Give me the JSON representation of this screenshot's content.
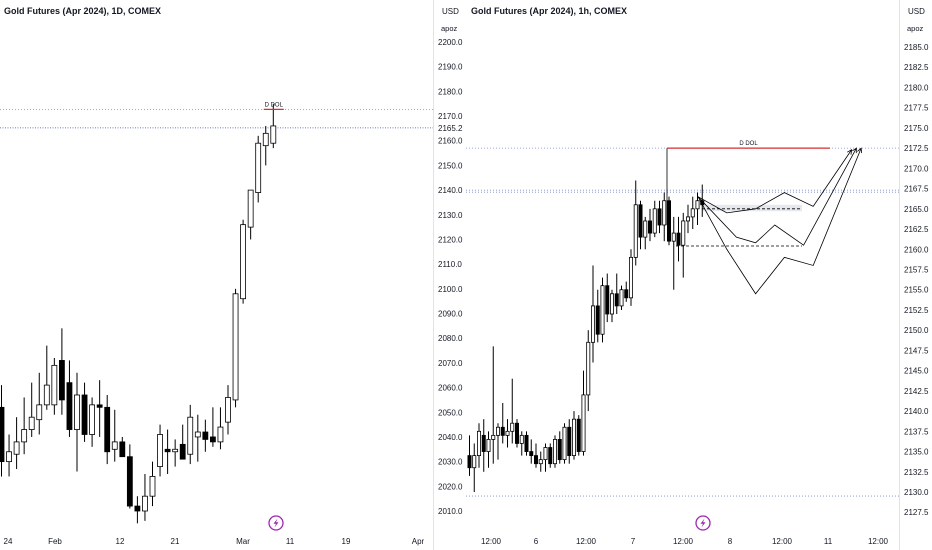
{
  "left_panel": {
    "title": "Gold Futures (Apr 2024), 1D, COMEX",
    "currency": "USD",
    "scale_mode": "apoz",
    "annotation": "D DOL",
    "logo": "tradingview-lightning-icon"
  },
  "right_panel": {
    "title": "Gold Futures (Apr 2024), 1h, COMEX",
    "currency": "USD",
    "scale_mode": "apoz",
    "annotation": "D DOL",
    "logo": "tradingview-lightning-icon"
  },
  "colors": {
    "candle_up_fill": "#ffffff",
    "candle_down_fill": "#000000",
    "candle_outline": "#000000",
    "dol_line": "#d32f2f",
    "dotted_level": "#7b8ec8",
    "logo": "#9c27b0"
  },
  "chart_data": [
    {
      "type": "candlestick",
      "title": "Gold Futures (Apr 2024), 1D, COMEX",
      "y_ticks": [
        2010.0,
        2020.0,
        2030.0,
        2040.0,
        2050.0,
        2060.0,
        2070.0,
        2080.0,
        2090.0,
        2100.0,
        2110.0,
        2120.0,
        2130.0,
        2140.0,
        2150.0,
        2160.0,
        2165.2,
        2170.0,
        2180.0,
        2190.0,
        2200.0
      ],
      "ylim": [
        2005,
        2210
      ],
      "x_tick_labels": [
        "24",
        "Feb",
        "12",
        "21",
        "Mar",
        "11",
        "19",
        "Apr"
      ],
      "candles": [
        {
          "o": 2052,
          "h": 2061,
          "l": 2024,
          "c": 2030
        },
        {
          "o": 2030,
          "h": 2041,
          "l": 2024,
          "c": 2034
        },
        {
          "o": 2033,
          "h": 2048,
          "l": 2027,
          "c": 2038
        },
        {
          "o": 2038,
          "h": 2056,
          "l": 2033,
          "c": 2043
        },
        {
          "o": 2043,
          "h": 2062,
          "l": 2040,
          "c": 2048
        },
        {
          "o": 2047,
          "h": 2066,
          "l": 2041,
          "c": 2053
        },
        {
          "o": 2053,
          "h": 2077,
          "l": 2051,
          "c": 2061
        },
        {
          "o": 2053,
          "h": 2072,
          "l": 2049,
          "c": 2069
        },
        {
          "o": 2071,
          "h": 2084,
          "l": 2049,
          "c": 2055
        },
        {
          "o": 2062,
          "h": 2071,
          "l": 2040,
          "c": 2043
        },
        {
          "o": 2043,
          "h": 2066,
          "l": 2026,
          "c": 2057
        },
        {
          "o": 2057,
          "h": 2062,
          "l": 2038,
          "c": 2041
        },
        {
          "o": 2041,
          "h": 2056,
          "l": 2036,
          "c": 2053
        },
        {
          "o": 2053,
          "h": 2063,
          "l": 2040,
          "c": 2052
        },
        {
          "o": 2052,
          "h": 2057,
          "l": 2029,
          "c": 2034
        },
        {
          "o": 2035,
          "h": 2051,
          "l": 2030,
          "c": 2038
        },
        {
          "o": 2038,
          "h": 2040,
          "l": 2033,
          "c": 2032
        },
        {
          "o": 2032,
          "h": 2037,
          "l": 2011,
          "c": 2012
        },
        {
          "o": 2012,
          "h": 2016,
          "l": 2005,
          "c": 2010
        },
        {
          "o": 2010,
          "h": 2025,
          "l": 2006,
          "c": 2016
        },
        {
          "o": 2016,
          "h": 2030,
          "l": 2012,
          "c": 2024
        },
        {
          "o": 2028,
          "h": 2045,
          "l": 2024,
          "c": 2041
        },
        {
          "o": 2035,
          "h": 2043,
          "l": 2025,
          "c": 2034
        },
        {
          "o": 2034,
          "h": 2039,
          "l": 2028,
          "c": 2035
        },
        {
          "o": 2037,
          "h": 2045,
          "l": 2031,
          "c": 2031
        },
        {
          "o": 2033,
          "h": 2053,
          "l": 2029,
          "c": 2048
        },
        {
          "o": 2040,
          "h": 2049,
          "l": 2030,
          "c": 2042
        },
        {
          "o": 2042,
          "h": 2047,
          "l": 2034,
          "c": 2039
        },
        {
          "o": 2040,
          "h": 2052,
          "l": 2036,
          "c": 2038
        },
        {
          "o": 2038,
          "h": 2052,
          "l": 2035,
          "c": 2044
        },
        {
          "o": 2046,
          "h": 2061,
          "l": 2041,
          "c": 2056
        },
        {
          "o": 2055,
          "h": 2100,
          "l": 2052,
          "c": 2098
        },
        {
          "o": 2096,
          "h": 2128,
          "l": 2094,
          "c": 2126
        },
        {
          "o": 2125,
          "h": 2140,
          "l": 2120,
          "c": 2140
        },
        {
          "o": 2139,
          "h": 2162,
          "l": 2135,
          "c": 2159
        },
        {
          "o": 2158,
          "h": 2166,
          "l": 2150,
          "c": 2163
        },
        {
          "o": 2159,
          "h": 2175,
          "l": 2157,
          "c": 2166
        }
      ],
      "levels": {
        "dol": 2172.7,
        "current": 2165.2
      }
    },
    {
      "type": "candlestick",
      "title": "Gold Futures (Apr 2024), 1h, COMEX",
      "y_ticks": [
        2127.5,
        2130.0,
        2132.5,
        2135.0,
        2137.5,
        2140.0,
        2142.5,
        2145.0,
        2147.5,
        2150.0,
        2152.5,
        2155.0,
        2157.5,
        2160.0,
        2162.5,
        2165.0,
        2167.5,
        2170.0,
        2172.5,
        2175.0,
        2177.5,
        2180.0,
        2182.5,
        2185.0
      ],
      "ylim": [
        2126.0,
        2187.5
      ],
      "x_tick_labels": [
        "12:00",
        "6",
        "12:00",
        "7",
        "12:00",
        "8",
        "12:00",
        "11",
        "12:00"
      ],
      "candles": [
        {
          "o": 2134.5,
          "h": 2137.0,
          "l": 2132.0,
          "c": 2133.0
        },
        {
          "o": 2133.0,
          "h": 2136.0,
          "l": 2130.0,
          "c": 2134.5
        },
        {
          "o": 2134.5,
          "h": 2138.5,
          "l": 2133.0,
          "c": 2137.5
        },
        {
          "o": 2137.0,
          "h": 2139.0,
          "l": 2132.5,
          "c": 2135.0
        },
        {
          "o": 2135.0,
          "h": 2137.5,
          "l": 2133.0,
          "c": 2136.5
        },
        {
          "o": 2136.5,
          "h": 2148.0,
          "l": 2133.5,
          "c": 2137.0
        },
        {
          "o": 2137.0,
          "h": 2138.5,
          "l": 2134.0,
          "c": 2138.0
        },
        {
          "o": 2138.0,
          "h": 2141.0,
          "l": 2136.0,
          "c": 2137.0
        },
        {
          "o": 2137.0,
          "h": 2139.0,
          "l": 2135.5,
          "c": 2137.5
        },
        {
          "o": 2137.5,
          "h": 2144.0,
          "l": 2136.0,
          "c": 2138.5
        },
        {
          "o": 2138.5,
          "h": 2139.0,
          "l": 2135.5,
          "c": 2136.0
        },
        {
          "o": 2136.0,
          "h": 2137.5,
          "l": 2134.5,
          "c": 2137.0
        },
        {
          "o": 2137.0,
          "h": 2137.5,
          "l": 2134.5,
          "c": 2135.0
        },
        {
          "o": 2135.0,
          "h": 2136.5,
          "l": 2133.5,
          "c": 2134.5
        },
        {
          "o": 2134.5,
          "h": 2136.0,
          "l": 2133.0,
          "c": 2133.5
        },
        {
          "o": 2133.5,
          "h": 2135.0,
          "l": 2132.5,
          "c": 2134.0
        },
        {
          "o": 2134.0,
          "h": 2136.0,
          "l": 2132.5,
          "c": 2135.5
        },
        {
          "o": 2135.5,
          "h": 2136.0,
          "l": 2133.0,
          "c": 2133.5
        },
        {
          "o": 2133.5,
          "h": 2137.0,
          "l": 2133.0,
          "c": 2136.5
        },
        {
          "o": 2136.5,
          "h": 2137.5,
          "l": 2133.5,
          "c": 2134.0
        },
        {
          "o": 2134.0,
          "h": 2138.5,
          "l": 2133.5,
          "c": 2138.0
        },
        {
          "o": 2138.0,
          "h": 2139.0,
          "l": 2133.5,
          "c": 2134.5
        },
        {
          "o": 2134.5,
          "h": 2140.0,
          "l": 2134.0,
          "c": 2139.0
        },
        {
          "o": 2139.0,
          "h": 2139.5,
          "l": 2134.5,
          "c": 2135.0
        },
        {
          "o": 2135.0,
          "h": 2145.0,
          "l": 2134.5,
          "c": 2142.0
        },
        {
          "o": 2142.0,
          "h": 2150.0,
          "l": 2140.0,
          "c": 2148.5
        },
        {
          "o": 2148.5,
          "h": 2158.0,
          "l": 2146.0,
          "c": 2153.0
        },
        {
          "o": 2153.0,
          "h": 2155.0,
          "l": 2148.5,
          "c": 2149.5
        },
        {
          "o": 2149.5,
          "h": 2156.5,
          "l": 2148.5,
          "c": 2155.5
        },
        {
          "o": 2155.5,
          "h": 2157.0,
          "l": 2151.0,
          "c": 2152.0
        },
        {
          "o": 2152.0,
          "h": 2155.0,
          "l": 2151.0,
          "c": 2154.5
        },
        {
          "o": 2154.5,
          "h": 2157.0,
          "l": 2152.0,
          "c": 2153.0
        },
        {
          "o": 2153.0,
          "h": 2155.5,
          "l": 2152.5,
          "c": 2155.0
        },
        {
          "o": 2155.0,
          "h": 2156.0,
          "l": 2153.5,
          "c": 2154.0
        },
        {
          "o": 2154.0,
          "h": 2160.0,
          "l": 2153.0,
          "c": 2159.0
        },
        {
          "o": 2159.0,
          "h": 2168.5,
          "l": 2158.0,
          "c": 2165.5
        },
        {
          "o": 2165.5,
          "h": 2166.0,
          "l": 2160.0,
          "c": 2161.5
        },
        {
          "o": 2161.5,
          "h": 2164.0,
          "l": 2160.0,
          "c": 2163.5
        },
        {
          "o": 2163.5,
          "h": 2165.0,
          "l": 2161.0,
          "c": 2162.0
        },
        {
          "o": 2162.0,
          "h": 2166.0,
          "l": 2161.5,
          "c": 2165.0
        },
        {
          "o": 2165.0,
          "h": 2166.0,
          "l": 2162.0,
          "c": 2163.0
        },
        {
          "o": 2163.0,
          "h": 2167.0,
          "l": 2161.0,
          "c": 2166.0
        },
        {
          "o": 2166.0,
          "h": 2166.5,
          "l": 2160.5,
          "c": 2161.0
        },
        {
          "o": 2161.0,
          "h": 2164.0,
          "l": 2155.0,
          "c": 2162.0
        },
        {
          "o": 2162.0,
          "h": 2164.0,
          "l": 2158.5,
          "c": 2160.5
        },
        {
          "o": 2160.5,
          "h": 2164.5,
          "l": 2156.5,
          "c": 2163.5
        },
        {
          "o": 2163.5,
          "h": 2165.5,
          "l": 2162.0,
          "c": 2164.0
        },
        {
          "o": 2164.0,
          "h": 2166.5,
          "l": 2162.5,
          "c": 2165.0
        },
        {
          "o": 2165.0,
          "h": 2167.0,
          "l": 2163.0,
          "c": 2166.0
        },
        {
          "o": 2166.0,
          "h": 2168.0,
          "l": 2164.0,
          "c": 2165.5
        }
      ],
      "levels": {
        "dol": 2172.5,
        "upper_dotted": 2167.3,
        "lower_dotted": 2172.5,
        "dashed_1": 2165.0,
        "dashed_2": 2160.4,
        "bottom_dotted": 2129.5,
        "zone_top": 2165.5,
        "zone_bottom": 2164.7
      },
      "projection_paths": [
        [
          [
            0,
            2166.5
          ],
          [
            3,
            2164.5
          ],
          [
            6,
            2165.0
          ],
          [
            9,
            2167.0
          ],
          [
            12,
            2165.3
          ],
          [
            16,
            2172.3
          ]
        ],
        [
          [
            0,
            2166.5
          ],
          [
            4,
            2161.5
          ],
          [
            6,
            2160.8
          ],
          [
            8,
            2163.0
          ],
          [
            11,
            2160.5
          ],
          [
            16.5,
            2172.5
          ]
        ],
        [
          [
            0,
            2166.5
          ],
          [
            3,
            2160.0
          ],
          [
            6,
            2154.5
          ],
          [
            9,
            2159.0
          ],
          [
            12,
            2158.0
          ],
          [
            17,
            2172.5
          ]
        ]
      ]
    }
  ]
}
